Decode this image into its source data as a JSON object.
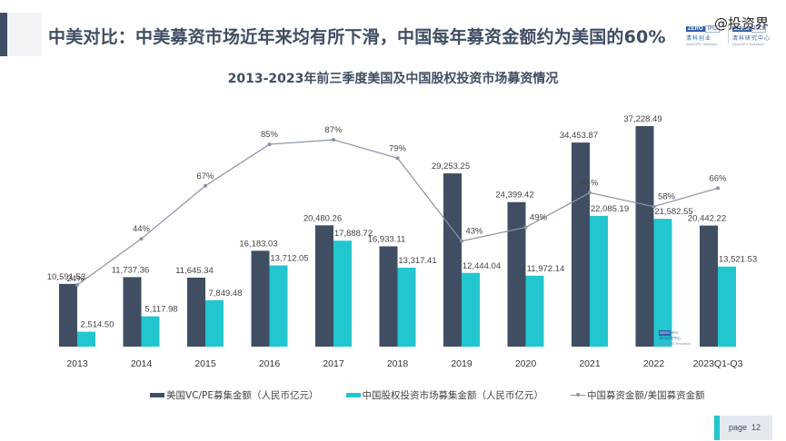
{
  "slide": {
    "headline": "中美对比：中美募资市场近年来均有所下滑，中国每年募资金额约为美国的60%",
    "watermark": "@投资界",
    "logos": [
      {
        "box": "ZERO",
        "box2": "IPO",
        "zh": "清科创业",
        "en": "Zero2IPO Ventures"
      },
      {
        "box": "ZERO",
        "box2": "IPO",
        "zh": "清科研究中心",
        "en": "Zero2IPO Research"
      }
    ],
    "mini_logo": {
      "box": "ZERO",
      "box2": "IPO",
      "zh": "清科研究中心",
      "en": "Zero2IPO Research"
    },
    "page_label": "page",
    "page_number": "12",
    "colors": {
      "us_bar": "#3f4e63",
      "cn_bar": "#22c6cf",
      "ratio_line": "#8a93a6",
      "accent": "#22c6cf"
    }
  },
  "chart_data": {
    "type": "bar",
    "title": "2013-2023年前三季度美国及中国股权投资市场募资情况",
    "categories": [
      "2013",
      "2014",
      "2015",
      "2016",
      "2017",
      "2018",
      "2019",
      "2020",
      "2021",
      "2022",
      "2023Q1-Q3"
    ],
    "series": [
      {
        "name": "美国VC/PE募集金额（人民币亿元）",
        "kind": "bar",
        "values": [
          10591.53,
          11737.36,
          11645.34,
          16183.03,
          20480.26,
          16933.11,
          29253.25,
          24399.42,
          34453.87,
          37228.49,
          20442.22
        ],
        "labels": [
          "10,591.53",
          "11,737.36",
          "11,645.34",
          "16,183.03",
          "20,480.26",
          "16,933.11",
          "29,253.25",
          "24,399.42",
          "34,453.87",
          "37,228.49",
          "20,442.22"
        ]
      },
      {
        "name": "中国股权投资市场募集金额（人民币亿元）",
        "kind": "bar",
        "values": [
          2514.5,
          5117.98,
          7849.48,
          13712.05,
          17888.72,
          13317.41,
          12444.04,
          11972.14,
          22085.19,
          21582.55,
          13521.53
        ],
        "labels": [
          "2,514.50",
          "5,117.98",
          "7,849.48",
          "13,712.05",
          "17,888.72",
          "13,317.41",
          "12,444.04",
          "11,972.14",
          "22,085.19",
          "21,582.55",
          "13,521.53"
        ]
      },
      {
        "name": "中国募资金额/美国募资金额",
        "kind": "line",
        "unit": "%",
        "values": [
          24,
          44,
          67,
          85,
          87,
          79,
          43,
          49,
          64,
          58,
          66
        ],
        "labels": [
          "24%",
          "44%",
          "67%",
          "85%",
          "87%",
          "79%",
          "43%",
          "49%",
          "64%",
          "58%",
          "66%"
        ]
      }
    ],
    "xlabel": "",
    "ylabel": "",
    "ylim": [
      0,
      37228.49
    ],
    "y2lim": [
      0,
      100
    ],
    "grid": false,
    "axes_visible": false,
    "legend_position": "bottom"
  }
}
